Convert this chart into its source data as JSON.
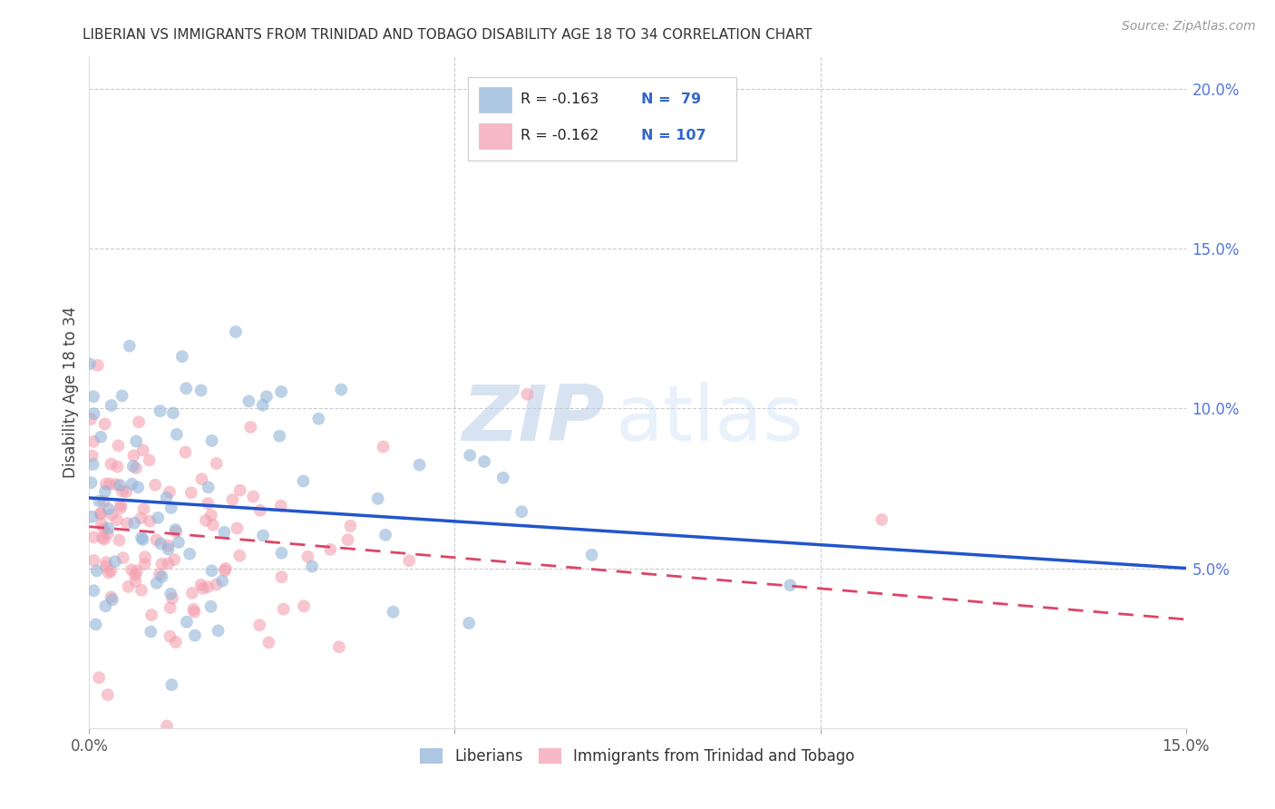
{
  "title": "LIBERIAN VS IMMIGRANTS FROM TRINIDAD AND TOBAGO DISABILITY AGE 18 TO 34 CORRELATION CHART",
  "source": "Source: ZipAtlas.com",
  "ylabel": "Disability Age 18 to 34",
  "x_min": 0.0,
  "x_max": 0.15,
  "y_min": 0.0,
  "y_max": 0.21,
  "liberian_color": "#92b4d8",
  "trinidad_color": "#f4a0b0",
  "liberian_line_color": "#2255cc",
  "trinidad_line_color": "#dd4466",
  "legend_r1": "R = -0.163",
  "legend_n1": "N =  79",
  "legend_r2": "R = -0.162",
  "legend_n2": "N = 107",
  "legend_label1": "Liberians",
  "legend_label2": "Immigrants from Trinidad and Tobago",
  "watermark_zip": "ZIP",
  "watermark_atlas": "atlas",
  "liberian_N": 79,
  "trinidad_N": 107,
  "lib_line_x0": 0.0,
  "lib_line_y0": 0.072,
  "lib_line_x1": 0.15,
  "lib_line_y1": 0.05,
  "tri_line_x0": 0.0,
  "tri_line_y0": 0.063,
  "tri_line_x1": 0.15,
  "tri_line_y1": 0.034,
  "seed": 12
}
